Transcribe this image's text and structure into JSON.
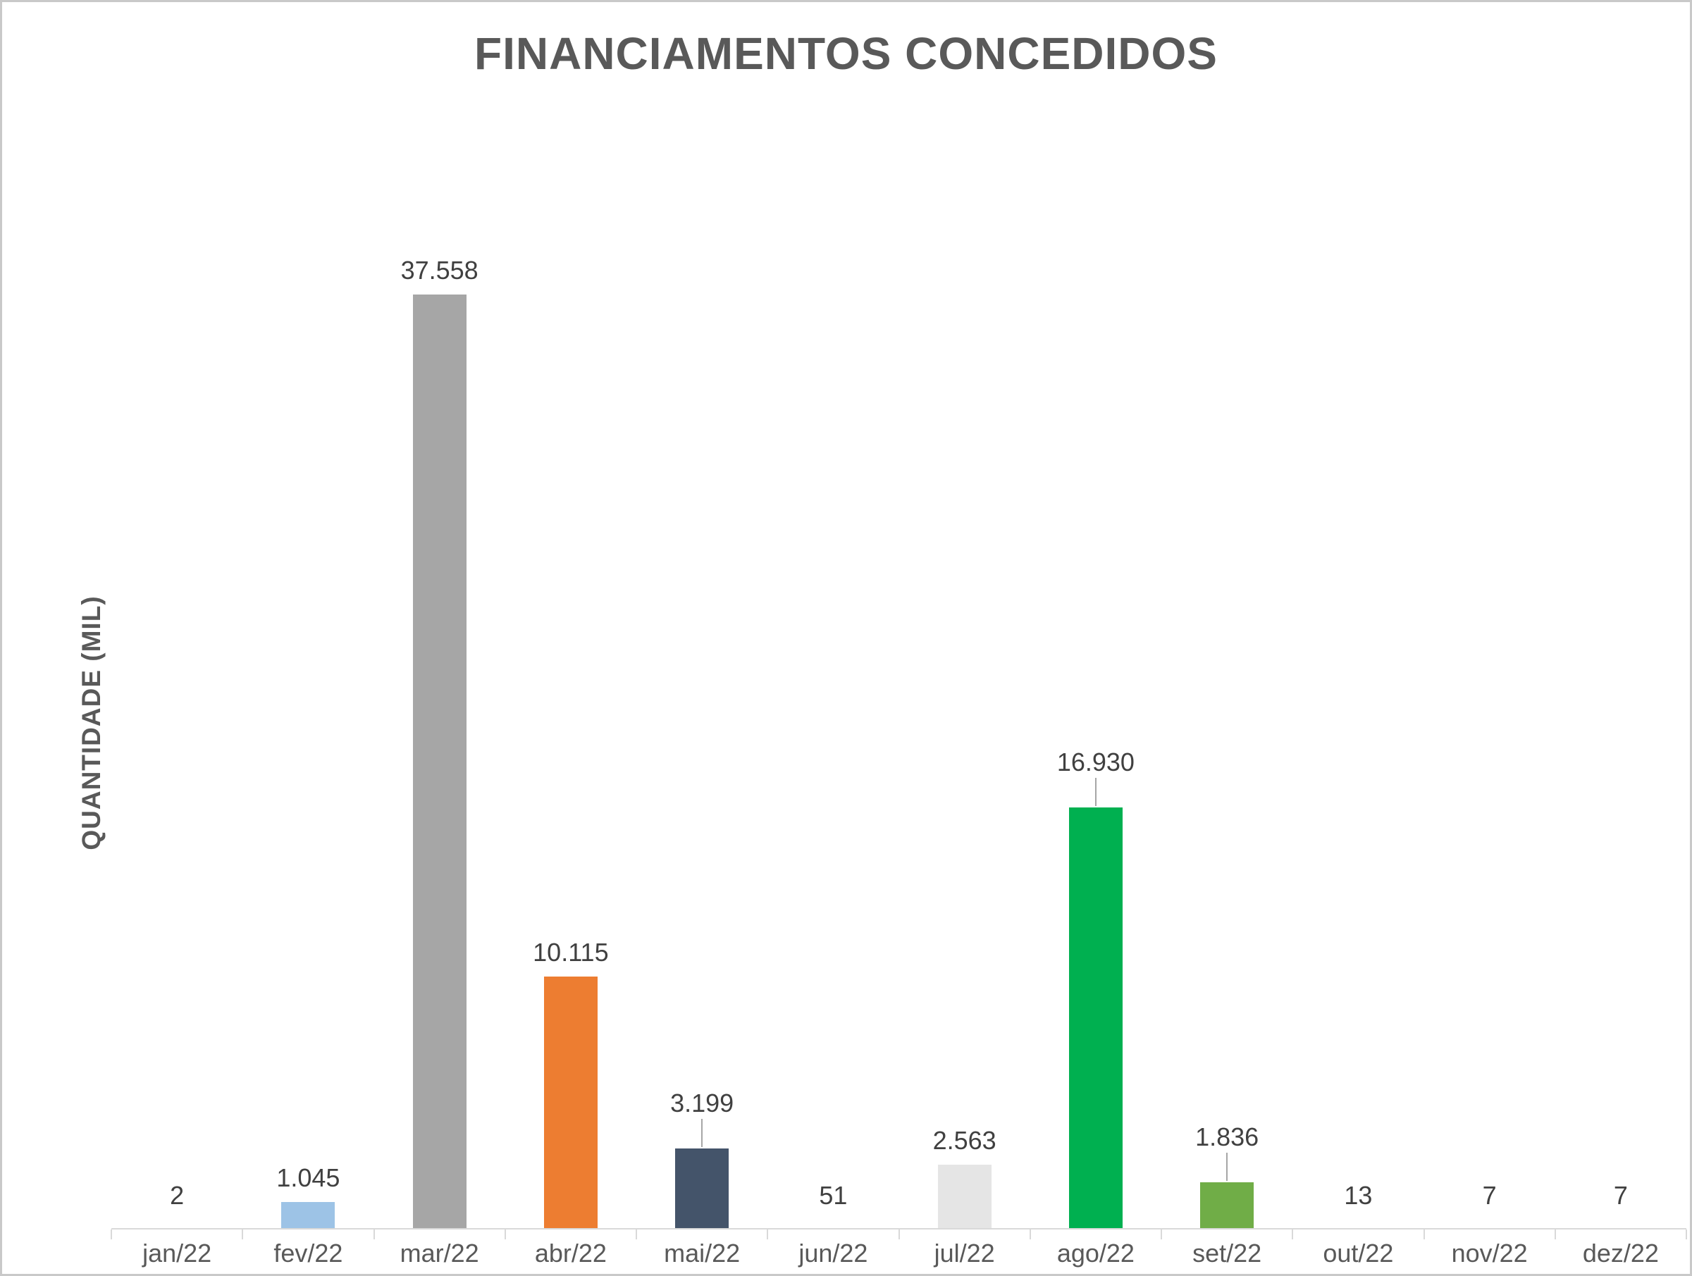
{
  "chart_data": {
    "type": "bar",
    "title": "FINANCIAMENTOS CONCEDIDOS",
    "ylabel": "QUANTIDADE  (MIL)",
    "xlabel": "",
    "categories": [
      "jan/22",
      "fev/22",
      "mar/22",
      "abr/22",
      "mai/22",
      "jun/22",
      "jul/22",
      "ago/22",
      "set/22",
      "out/22",
      "nov/22",
      "dez/22"
    ],
    "values": [
      2,
      1045,
      37558,
      10115,
      3199,
      51,
      2563,
      16930,
      1836,
      13,
      7,
      7
    ],
    "data_labels": [
      "2",
      "1.045",
      "37.558",
      "10.115",
      "3.199",
      "51",
      "2.563",
      "16.930",
      "1.836",
      "13",
      "7",
      "7"
    ],
    "bar_colors": [
      null,
      "#9DC3E6",
      "#A6A6A6",
      "#ED7D31",
      "#44546A",
      null,
      "#E5E5E5",
      "#00B050",
      "#70AD47",
      null,
      null,
      null
    ],
    "label_leader_lines": [
      false,
      false,
      false,
      false,
      true,
      false,
      false,
      true,
      true,
      false,
      false,
      false
    ],
    "number_format": "pt-BR (dot as thousands separator)",
    "y_axis_ticks": "none",
    "gridlines": "none",
    "legend": "none",
    "title_color": "#595959",
    "axis_line_color": "#D9D9D9",
    "label_color": "#404040",
    "category_label_color": "#595959"
  }
}
